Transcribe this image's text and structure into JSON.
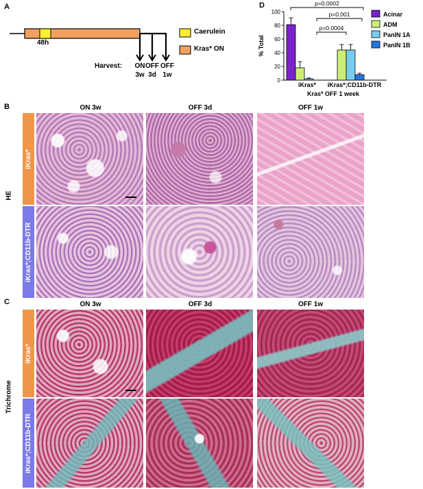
{
  "panel_letters": {
    "a": "A",
    "b": "B",
    "c": "C",
    "d": "D"
  },
  "timeline": {
    "bar_label": "48h",
    "harvest_label": "Harvest:",
    "timepoints": [
      {
        "top": "ON",
        "bottom": "3w"
      },
      {
        "top": "OFF",
        "bottom": "3d"
      },
      {
        "top": "OFF",
        "bottom": "1w"
      }
    ],
    "legend": [
      {
        "label": "Caerulein",
        "color": "#ffee33"
      },
      {
        "label": "Kras* ON",
        "color": "#f2a060"
      }
    ]
  },
  "micro_columns": [
    "ON 3w",
    "OFF 3d",
    "OFF 1w"
  ],
  "he_side_label": "HE",
  "trichrome_side_label": "Trichrome",
  "rows": [
    {
      "label": "iKras*",
      "color": "#f0964a"
    },
    {
      "label": "iKras*;CD11b-DTR",
      "color": "#7a7ae8"
    }
  ],
  "chart_data": {
    "type": "bar",
    "ylabel": "% Total",
    "xlabel": "Kras* OFF 1 week",
    "ylim": [
      0,
      100
    ],
    "yticks": [
      0,
      20,
      40,
      60,
      80,
      100
    ],
    "categories": [
      "iKras*",
      "iKras*;CD11b-DTR"
    ],
    "series": [
      {
        "name": "Acinar",
        "color": "#7a22cc",
        "values": [
          81,
          0
        ],
        "errors": [
          10,
          0
        ]
      },
      {
        "name": "ADM",
        "color": "#ccee77",
        "values": [
          18,
          44
        ],
        "errors": [
          9,
          8
        ]
      },
      {
        "name": "PanIN 1A",
        "color": "#77ccee",
        "values": [
          2,
          44
        ],
        "errors": [
          1,
          8
        ]
      },
      {
        "name": "PanIN 1B",
        "color": "#2277dd",
        "values": [
          0,
          8
        ],
        "errors": [
          0,
          2
        ]
      }
    ],
    "annotations": [
      "p=0.0002",
      "p=0.001",
      "p=0.0004"
    ],
    "legend_position": "right"
  }
}
